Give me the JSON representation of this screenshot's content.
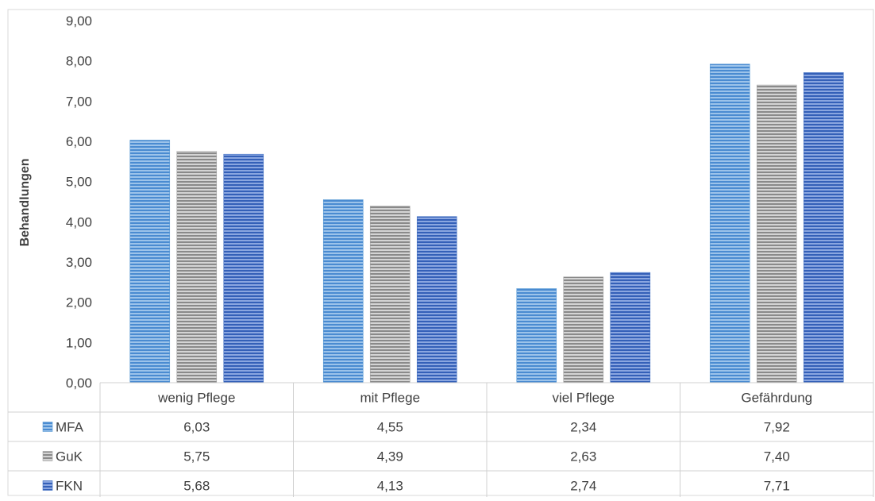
{
  "chart_data": {
    "type": "bar",
    "title": "",
    "xlabel": "",
    "ylabel": "Behandlungen",
    "ylim": [
      0,
      9
    ],
    "yticks": [
      "0,00",
      "1,00",
      "2,00",
      "3,00",
      "4,00",
      "5,00",
      "6,00",
      "7,00",
      "8,00",
      "9,00"
    ],
    "grid": false,
    "legend": "data-table-left",
    "categories": [
      "wenig Pflege",
      "mit Pflege",
      "viel Pflege",
      "Gefährdung"
    ],
    "series": [
      {
        "name": "MFA",
        "values": [
          6.03,
          4.55,
          2.34,
          7.92
        ],
        "labels": [
          "6,03",
          "4,55",
          "2,34",
          "7,92"
        ],
        "color": "#5b9bd5"
      },
      {
        "name": "GuK",
        "values": [
          5.75,
          4.39,
          2.63,
          7.4
        ],
        "labels": [
          "5,75",
          "4,39",
          "2,63",
          "7,40"
        ],
        "color": "#a5a5a5"
      },
      {
        "name": "FKN",
        "values": [
          5.68,
          4.13,
          2.74,
          7.71
        ],
        "labels": [
          "5,68",
          "4,13",
          "2,74",
          "7,71"
        ],
        "color": "#4472c4"
      }
    ]
  }
}
